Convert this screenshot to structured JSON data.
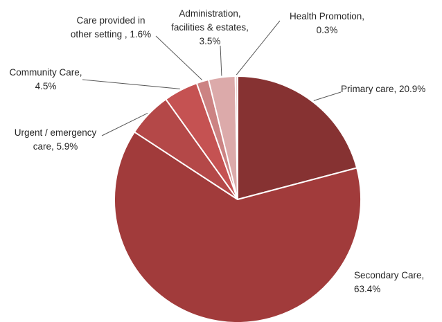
{
  "chart_data": {
    "type": "pie",
    "title": "",
    "slices": [
      {
        "label_lines": [
          "Primary care, 20.9%"
        ],
        "value": 20.9,
        "color": "#863232"
      },
      {
        "label_lines": [
          "Secondary Care,",
          "63.4%"
        ],
        "value": 63.4,
        "color": "#a13b3b"
      },
      {
        "label_lines": [
          "Urgent / emergency",
          "care, 5.9%"
        ],
        "value": 5.9,
        "color": "#b44848"
      },
      {
        "label_lines": [
          "Community Care,",
          "4.5%"
        ],
        "value": 4.5,
        "color": "#c55252"
      },
      {
        "label_lines": [
          "Care provided in",
          "other setting , 1.6%"
        ],
        "value": 1.6,
        "color": "#cc8383"
      },
      {
        "label_lines": [
          "Administration,",
          "facilities & estates,",
          "3.5%"
        ],
        "value": 3.5,
        "color": "#dcaaaa"
      },
      {
        "label_lines": [
          "Health Promotion,",
          "0.3%"
        ],
        "value": 0.3,
        "color": "#ecd0d0"
      }
    ],
    "legend": "none",
    "label_style": "outside labels with leader lines"
  }
}
